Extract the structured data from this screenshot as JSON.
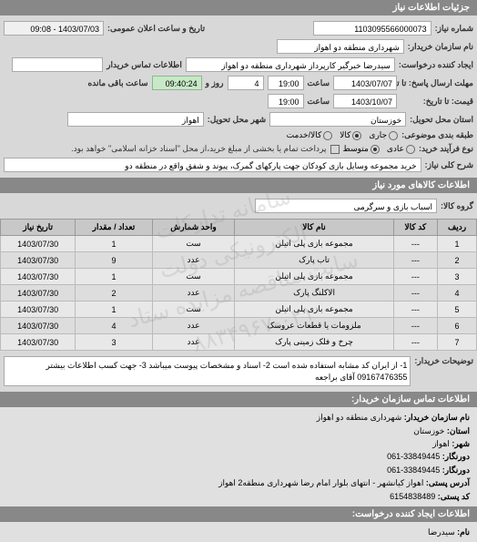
{
  "watermark": {
    "line1": "سامانه تدارکات الکترونیکی دولت",
    "line2": "سایت مناقصه مزایده ستاد",
    "line3": "۸۸۳۴۹۶۷-۰۲۱"
  },
  "headers": {
    "details": "جزئیات اطلاعات نیاز",
    "goods": "اطلاعات کالاهای مورد نیاز",
    "contact": "اطلاعات تماس سازمان خریدار:",
    "creator": "اطلاعات ایجاد کننده درخواست:"
  },
  "labels": {
    "number": "شماره نیاز:",
    "announceDate": "تاریخ و ساعت اعلان عمومی:",
    "buyerName": "نام سازمان خریدار:",
    "requester": "ایجاد کننده درخواست:",
    "buyerContact": "اطلاعات تماس خریدار",
    "deadline": "مهلت ارسال پاسخ: تا تاریخ:",
    "hour": "ساعت",
    "day": "روز و",
    "remaining": "ساعت باقی مانده",
    "priceUntil": "قیمت: تا تاریخ:",
    "deliveryState": "استان محل تحویل:",
    "deliveryCity": "شهر محل تحویل:",
    "budgetType": "طبقه بندی موضوعی:",
    "paymentMethod": "نوع فرآیند خرید:",
    "paymentNote": "پرداخت تمام یا بخشی از مبلغ خرید،از محل \"اسناد خزانه اسلامی\" خواهد بود.",
    "description": "شرح کلی نیاز:",
    "goodsGroup": "گروه کالا:",
    "buyerNotes": "توضیحات خریدار:",
    "orgName": "نام سازمان خریدار:",
    "province": "استان:",
    "city": "شهر:",
    "phone": "دورنگار:",
    "fax": "دورنگار:",
    "postalAddress": "آدرس پستی:",
    "postalCode": "کد پستی:",
    "name": "نام:"
  },
  "values": {
    "number": "1103095566000073",
    "announceDate": "1403/07/03 - 09:08",
    "buyerName": "شهرداری منطقه دو اهواز",
    "requester": "سیدرضا خبرگیر کارپرداز  شهرداری منطقه دو اهواز",
    "deadlineDate": "1403/07/07",
    "deadlineHour": "19:00",
    "remainingDays": "4",
    "remainingTime": "09:40:24",
    "priceDate": "1403/10/07",
    "priceHour": "19:00",
    "deliveryState": "خوزستان",
    "deliveryCity": "اهواز",
    "description": "خرید مجموعه وسایل بازی کودکان جهت پارکهای گمرک، پیوند و شفق واقع در منطقه دو",
    "goodsGroup": "اسباب بازی و سرگرمی",
    "buyerNotes": "1- از ایران کد مشابه استفاده شده است 2- اسناد و مشخصات پیوست میباشد 3- جهت کسب اطلاعات بیشتر 09167476355 آقای براجعه",
    "orgName": "شهرداری منطقه دو اهواز",
    "province": "خوزستان",
    "city": "اهواز",
    "phone": "33849445-061",
    "fax": "33849445-061",
    "postalAddress": "اهواز کیانشهر - انتهای بلوار امام رضا شهرداری منطقه2 اهواز",
    "postalCode": "6154838489",
    "creatorName": "سیدرضا"
  },
  "budgetOptions": {
    "opt1": "جاری",
    "opt2": "کالا",
    "opt3": "کالا/خدمت"
  },
  "paymentOptions": {
    "opt1": "عادی",
    "opt2": "متوسط"
  },
  "table": {
    "cols": [
      "ردیف",
      "کد کالا",
      "نام کالا",
      "واحد شمارش",
      "تعداد / مقدار",
      "تاریخ نیاز"
    ],
    "rows": [
      [
        "1",
        "---",
        "مجموعه بازی پلی اتیلن",
        "ست",
        "1",
        "1403/07/30"
      ],
      [
        "2",
        "---",
        "تاب پارک",
        "عدد",
        "9",
        "1403/07/30"
      ],
      [
        "3",
        "---",
        "مجموعه بازی پلی اتیلن",
        "ست",
        "1",
        "1403/07/30"
      ],
      [
        "4",
        "---",
        "الاکلنگ پارک",
        "عدد",
        "2",
        "1403/07/30"
      ],
      [
        "5",
        "---",
        "مجموعه بازی پلی اتیلن",
        "ست",
        "1",
        "1403/07/30"
      ],
      [
        "6",
        "---",
        "ملزومات یا قطعات عروسک",
        "عدد",
        "4",
        "1403/07/30"
      ],
      [
        "7",
        "---",
        "چرخ و فلک زمینی پارک",
        "عدد",
        "3",
        "1403/07/30"
      ]
    ]
  }
}
